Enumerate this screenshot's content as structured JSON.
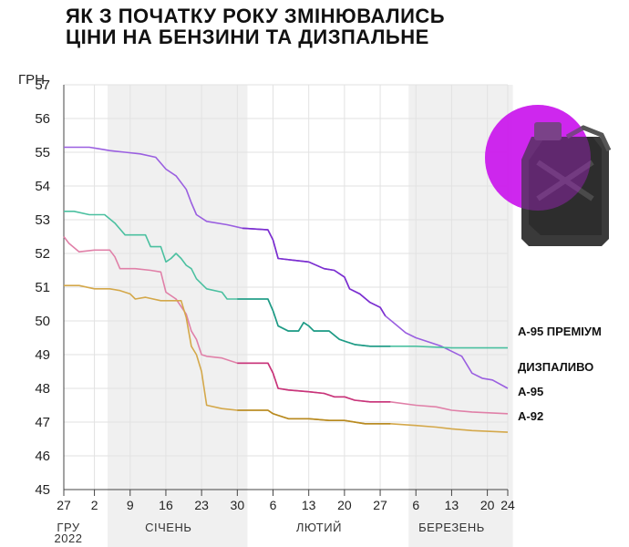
{
  "title_lines": [
    "ЯК З ПОЧАТКУ РОКУ ЗМІНЮВАЛИСЬ",
    "ЦІНИ НА БЕНЗИНИ ТА ДИЗПАЛЬНЕ"
  ],
  "chart_data": {
    "type": "line",
    "ylabel": "ГРН",
    "ylim": [
      45,
      57
    ],
    "yticks": [
      45,
      46,
      47,
      48,
      49,
      50,
      51,
      52,
      53,
      54,
      55,
      56,
      57
    ],
    "xlim": [
      "2021-12-27",
      "2022-03-24"
    ],
    "xticks": [
      {
        "date": "2021-12-27",
        "label": "27"
      },
      {
        "date": "2022-01-02",
        "label": "2"
      },
      {
        "date": "2022-01-09",
        "label": "9"
      },
      {
        "date": "2022-01-16",
        "label": "16"
      },
      {
        "date": "2022-01-23",
        "label": "23"
      },
      {
        "date": "2022-01-30",
        "label": "30"
      },
      {
        "date": "2022-02-06",
        "label": "6"
      },
      {
        "date": "2022-02-13",
        "label": "13"
      },
      {
        "date": "2022-02-20",
        "label": "20"
      },
      {
        "date": "2022-02-27",
        "label": "27"
      },
      {
        "date": "2022-03-06",
        "label": "6"
      },
      {
        "date": "2022-03-13",
        "label": "13"
      },
      {
        "date": "2022-03-20",
        "label": "20"
      },
      {
        "date": "2022-03-24",
        "label": "24"
      }
    ],
    "months": [
      {
        "label": "ГРУ\n2022",
        "start": "2021-12-27",
        "end": "2021-12-31",
        "shaded": false
      },
      {
        "label": "СІЧЕНЬ",
        "start": "2022-01-01",
        "end": "2022-01-31",
        "shaded": true
      },
      {
        "label": "ЛЮТИЙ",
        "start": "2022-02-01",
        "end": "2022-02-28",
        "shaded": false
      },
      {
        "label": "БЕРЕЗЕНЬ",
        "start": "2022-03-01",
        "end": "2022-03-24",
        "shaded": true
      }
    ],
    "series": [
      {
        "name": "ДИЗПАЛИВО",
        "color": "#9a5fe0",
        "shade_color": "#7b2fd0",
        "points": [
          [
            "2021-12-27",
            55.15
          ],
          [
            "2021-12-29",
            55.15
          ],
          [
            "2022-01-01",
            55.15
          ],
          [
            "2022-01-03",
            55.1
          ],
          [
            "2022-01-05",
            55.05
          ],
          [
            "2022-01-08",
            55.0
          ],
          [
            "2022-01-11",
            54.95
          ],
          [
            "2022-01-14",
            54.85
          ],
          [
            "2022-01-16",
            54.5
          ],
          [
            "2022-01-18",
            54.3
          ],
          [
            "2022-01-20",
            53.9
          ],
          [
            "2022-01-21",
            53.5
          ],
          [
            "2022-01-22",
            53.15
          ],
          [
            "2022-01-24",
            52.95
          ],
          [
            "2022-01-28",
            52.85
          ],
          [
            "2022-01-31",
            52.75
          ],
          [
            "2022-02-05",
            52.7
          ],
          [
            "2022-02-06",
            52.4
          ],
          [
            "2022-02-07",
            51.85
          ],
          [
            "2022-02-10",
            51.8
          ],
          [
            "2022-02-13",
            51.75
          ],
          [
            "2022-02-16",
            51.55
          ],
          [
            "2022-02-18",
            51.5
          ],
          [
            "2022-02-20",
            51.3
          ],
          [
            "2022-02-21",
            50.95
          ],
          [
            "2022-02-23",
            50.8
          ],
          [
            "2022-02-25",
            50.55
          ],
          [
            "2022-02-27",
            50.4
          ],
          [
            "2022-02-28",
            50.15
          ],
          [
            "2022-03-02",
            49.9
          ],
          [
            "2022-03-04",
            49.65
          ],
          [
            "2022-03-06",
            49.5
          ],
          [
            "2022-03-09",
            49.35
          ],
          [
            "2022-03-11",
            49.25
          ],
          [
            "2022-03-13",
            49.1
          ],
          [
            "2022-03-15",
            48.95
          ],
          [
            "2022-03-16",
            48.7
          ],
          [
            "2022-03-17",
            48.45
          ],
          [
            "2022-03-19",
            48.3
          ],
          [
            "2022-03-21",
            48.25
          ],
          [
            "2022-03-24",
            48.0
          ]
        ]
      },
      {
        "name": "А-95 ПРЕМІУМ",
        "color": "#4bc0a0",
        "shade_color": "#1f9a86",
        "points": [
          [
            "2021-12-27",
            53.25
          ],
          [
            "2021-12-29",
            53.25
          ],
          [
            "2022-01-01",
            53.15
          ],
          [
            "2022-01-04",
            53.15
          ],
          [
            "2022-01-06",
            52.9
          ],
          [
            "2022-01-08",
            52.55
          ],
          [
            "2022-01-12",
            52.55
          ],
          [
            "2022-01-13",
            52.2
          ],
          [
            "2022-01-15",
            52.2
          ],
          [
            "2022-01-16",
            51.75
          ],
          [
            "2022-01-17",
            51.85
          ],
          [
            "2022-01-18",
            52.0
          ],
          [
            "2022-01-19",
            51.85
          ],
          [
            "2022-01-20",
            51.65
          ],
          [
            "2022-01-21",
            51.55
          ],
          [
            "2022-01-22",
            51.25
          ],
          [
            "2022-01-24",
            50.95
          ],
          [
            "2022-01-27",
            50.85
          ],
          [
            "2022-01-28",
            50.65
          ],
          [
            "2022-01-30",
            50.65
          ],
          [
            "2022-02-05",
            50.65
          ],
          [
            "2022-02-06",
            50.3
          ],
          [
            "2022-02-07",
            49.85
          ],
          [
            "2022-02-09",
            49.7
          ],
          [
            "2022-02-11",
            49.7
          ],
          [
            "2022-02-12",
            49.95
          ],
          [
            "2022-02-13",
            49.85
          ],
          [
            "2022-02-14",
            49.7
          ],
          [
            "2022-02-17",
            49.7
          ],
          [
            "2022-02-19",
            49.45
          ],
          [
            "2022-02-22",
            49.3
          ],
          [
            "2022-02-25",
            49.25
          ],
          [
            "2022-03-01",
            49.25
          ],
          [
            "2022-03-06",
            49.25
          ],
          [
            "2022-03-13",
            49.2
          ],
          [
            "2022-03-24",
            49.2
          ]
        ]
      },
      {
        "name": "А-95",
        "color": "#e080a8",
        "shade_color": "#c8347a",
        "points": [
          [
            "2021-12-27",
            52.5
          ],
          [
            "2021-12-28",
            52.3
          ],
          [
            "2021-12-30",
            52.05
          ],
          [
            "2022-01-02",
            52.1
          ],
          [
            "2022-01-05",
            52.1
          ],
          [
            "2022-01-06",
            51.9
          ],
          [
            "2022-01-07",
            51.55
          ],
          [
            "2022-01-10",
            51.55
          ],
          [
            "2022-01-13",
            51.5
          ],
          [
            "2022-01-15",
            51.45
          ],
          [
            "2022-01-16",
            50.85
          ],
          [
            "2022-01-18",
            50.65
          ],
          [
            "2022-01-20",
            50.2
          ],
          [
            "2022-01-21",
            49.7
          ],
          [
            "2022-01-22",
            49.45
          ],
          [
            "2022-01-23",
            49.0
          ],
          [
            "2022-01-24",
            48.95
          ],
          [
            "2022-01-27",
            48.9
          ],
          [
            "2022-01-30",
            48.75
          ],
          [
            "2022-02-05",
            48.75
          ],
          [
            "2022-02-06",
            48.45
          ],
          [
            "2022-02-07",
            48.0
          ],
          [
            "2022-02-09",
            47.95
          ],
          [
            "2022-02-13",
            47.9
          ],
          [
            "2022-02-16",
            47.85
          ],
          [
            "2022-02-18",
            47.75
          ],
          [
            "2022-02-20",
            47.75
          ],
          [
            "2022-02-22",
            47.65
          ],
          [
            "2022-02-25",
            47.6
          ],
          [
            "2022-03-01",
            47.6
          ],
          [
            "2022-03-06",
            47.5
          ],
          [
            "2022-03-10",
            47.45
          ],
          [
            "2022-03-13",
            47.35
          ],
          [
            "2022-03-17",
            47.3
          ],
          [
            "2022-03-24",
            47.25
          ]
        ]
      },
      {
        "name": "А-92",
        "color": "#d4a84a",
        "shade_color": "#b88a20",
        "points": [
          [
            "2021-12-27",
            51.05
          ],
          [
            "2021-12-30",
            51.05
          ],
          [
            "2022-01-02",
            50.95
          ],
          [
            "2022-01-05",
            50.95
          ],
          [
            "2022-01-07",
            50.9
          ],
          [
            "2022-01-09",
            50.8
          ],
          [
            "2022-01-10",
            50.65
          ],
          [
            "2022-01-12",
            50.7
          ],
          [
            "2022-01-15",
            50.6
          ],
          [
            "2022-01-19",
            50.6
          ],
          [
            "2022-01-20",
            50.1
          ],
          [
            "2022-01-21",
            49.25
          ],
          [
            "2022-01-22",
            49.0
          ],
          [
            "2022-01-23",
            48.5
          ],
          [
            "2022-01-24",
            47.5
          ],
          [
            "2022-01-27",
            47.4
          ],
          [
            "2022-01-30",
            47.35
          ],
          [
            "2022-02-05",
            47.35
          ],
          [
            "2022-02-06",
            47.25
          ],
          [
            "2022-02-07",
            47.2
          ],
          [
            "2022-02-09",
            47.1
          ],
          [
            "2022-02-13",
            47.1
          ],
          [
            "2022-02-17",
            47.05
          ],
          [
            "2022-02-20",
            47.05
          ],
          [
            "2022-02-24",
            46.95
          ],
          [
            "2022-03-01",
            46.95
          ],
          [
            "2022-03-06",
            46.9
          ],
          [
            "2022-03-10",
            46.85
          ],
          [
            "2022-03-13",
            46.8
          ],
          [
            "2022-03-17",
            46.75
          ],
          [
            "2022-03-24",
            46.7
          ]
        ]
      }
    ]
  },
  "colors": {
    "shade": "#f0f0f0",
    "grid": "#e2e2e2",
    "axis": "#444444",
    "magenta_circle": "#d21af0"
  },
  "image": {
    "icon": "jerrycan-icon"
  }
}
